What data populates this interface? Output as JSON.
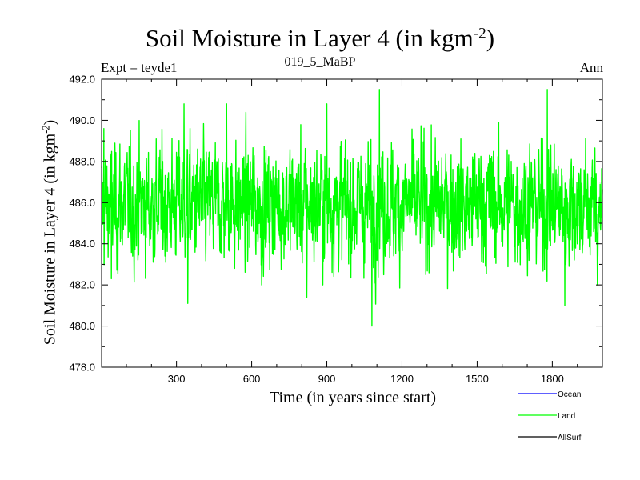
{
  "chart_data": {
    "type": "line",
    "title": "Soil Moisture in Layer 4 (in kgm",
    "title_sup": "-2",
    "title_close": ")",
    "subtitle_left": "Expt = teyde1",
    "subtitle_center": "019_5_MaBP",
    "subtitle_right": "Ann",
    "xlabel": "Time (in years since start)",
    "ylabel": "Soil Moisture in Layer 4 (in kgm",
    "ylabel_sup": "-2",
    "ylabel_close": ")",
    "xlim": [
      1,
      2000
    ],
    "ylim": [
      478.0,
      492.0
    ],
    "x_ticks": [
      300,
      600,
      900,
      1200,
      1500,
      1800
    ],
    "x_tick_labels": [
      "300",
      "600",
      "900",
      "1200",
      "1500",
      "1800"
    ],
    "y_ticks": [
      478.0,
      480.0,
      482.0,
      484.0,
      486.0,
      488.0,
      490.0,
      492.0
    ],
    "y_tick_labels": [
      "478.0",
      "480.0",
      "482.0",
      "484.0",
      "486.0",
      "488.0",
      "490.0",
      "492.0"
    ],
    "legend": [
      {
        "name": "Ocean",
        "color": "#0000ff"
      },
      {
        "name": "Land",
        "color": "#00ff00"
      },
      {
        "name": "AllSurf",
        "color": "#000000"
      }
    ],
    "series": [
      {
        "name": "Land",
        "color": "#00ff00",
        "n_points": 2000,
        "mean": 485.9,
        "std": 1.6,
        "min": 480.0,
        "max": 491.5,
        "notable_points": [
          {
            "x": 10,
            "y": 489.6
          },
          {
            "x": 40,
            "y": 482.3
          },
          {
            "x": 330,
            "y": 490.8
          },
          {
            "x": 345,
            "y": 481.1
          },
          {
            "x": 500,
            "y": 490.8
          },
          {
            "x": 640,
            "y": 482.0
          },
          {
            "x": 820,
            "y": 481.4
          },
          {
            "x": 900,
            "y": 490.8
          },
          {
            "x": 1080,
            "y": 480.0
          },
          {
            "x": 1110,
            "y": 491.5
          },
          {
            "x": 1780,
            "y": 491.5
          },
          {
            "x": 1850,
            "y": 481.0
          },
          {
            "x": 1980,
            "y": 482.0
          }
        ]
      }
    ]
  }
}
